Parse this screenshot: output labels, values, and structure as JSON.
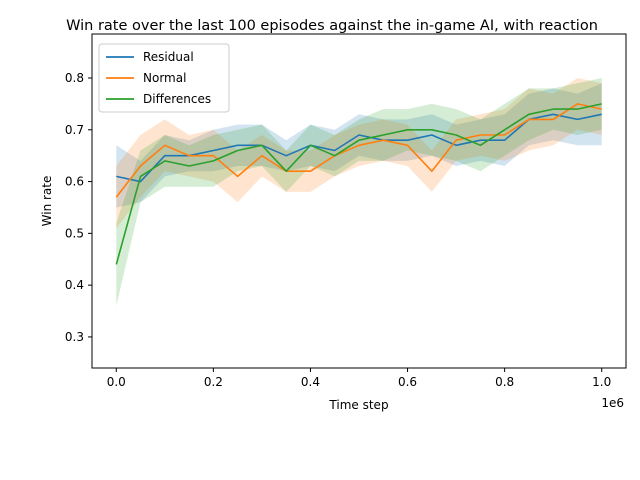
{
  "chart_data": {
    "type": "line",
    "title": "Win rate over the last 100 episodes against the in-game AI, with reaction",
    "xlabel": "Time step",
    "ylabel": "Win rate",
    "x_offset_label": "1e6",
    "xlim": [
      -0.05,
      1.05
    ],
    "ylim": [
      0.24,
      0.885
    ],
    "x_ticks": [
      0.0,
      0.2,
      0.4,
      0.6,
      0.8,
      1.0
    ],
    "x_tick_labels": [
      "0.0",
      "0.2",
      "0.4",
      "0.6",
      "0.8",
      "1.0"
    ],
    "y_ticks": [
      0.3,
      0.4,
      0.5,
      0.6,
      0.7,
      0.8
    ],
    "y_tick_labels": [
      "0.3",
      "0.4",
      "0.5",
      "0.6",
      "0.7",
      "0.8"
    ],
    "grid": false,
    "legend_position": "top-left",
    "x": [
      0.0,
      0.05,
      0.1,
      0.15,
      0.2,
      0.25,
      0.3,
      0.35,
      0.4,
      0.45,
      0.5,
      0.55,
      0.6,
      0.65,
      0.7,
      0.75,
      0.8,
      0.85,
      0.9,
      0.95,
      1.0
    ],
    "series": [
      {
        "name": "Residual",
        "color": "#1f77b4",
        "values": [
          0.61,
          0.6,
          0.65,
          0.65,
          0.66,
          0.67,
          0.67,
          0.65,
          0.67,
          0.66,
          0.69,
          0.68,
          0.68,
          0.69,
          0.67,
          0.68,
          0.68,
          0.72,
          0.73,
          0.72,
          0.73
        ],
        "band": [
          0.06,
          0.04,
          0.04,
          0.03,
          0.04,
          0.04,
          0.04,
          0.03,
          0.04,
          0.04,
          0.04,
          0.04,
          0.04,
          0.04,
          0.04,
          0.04,
          0.05,
          0.05,
          0.05,
          0.05,
          0.06
        ]
      },
      {
        "name": "Normal",
        "color": "#ff7f0e",
        "values": [
          0.57,
          0.63,
          0.67,
          0.65,
          0.65,
          0.61,
          0.65,
          0.62,
          0.62,
          0.65,
          0.67,
          0.68,
          0.67,
          0.62,
          0.68,
          0.69,
          0.69,
          0.72,
          0.72,
          0.75,
          0.74
        ],
        "band": [
          0.06,
          0.06,
          0.05,
          0.04,
          0.05,
          0.05,
          0.04,
          0.04,
          0.04,
          0.04,
          0.04,
          0.04,
          0.04,
          0.04,
          0.04,
          0.04,
          0.05,
          0.06,
          0.05,
          0.05,
          0.05
        ]
      },
      {
        "name": "Differences",
        "color": "#2ca02c",
        "values": [
          0.44,
          0.61,
          0.64,
          0.63,
          0.64,
          0.66,
          0.67,
          0.62,
          0.67,
          0.65,
          0.68,
          0.69,
          0.7,
          0.7,
          0.69,
          0.67,
          0.7,
          0.73,
          0.74,
          0.74,
          0.75
        ],
        "band": [
          0.08,
          0.05,
          0.05,
          0.04,
          0.05,
          0.04,
          0.04,
          0.04,
          0.04,
          0.04,
          0.04,
          0.05,
          0.04,
          0.05,
          0.05,
          0.05,
          0.05,
          0.05,
          0.04,
          0.05,
          0.05
        ]
      }
    ]
  }
}
